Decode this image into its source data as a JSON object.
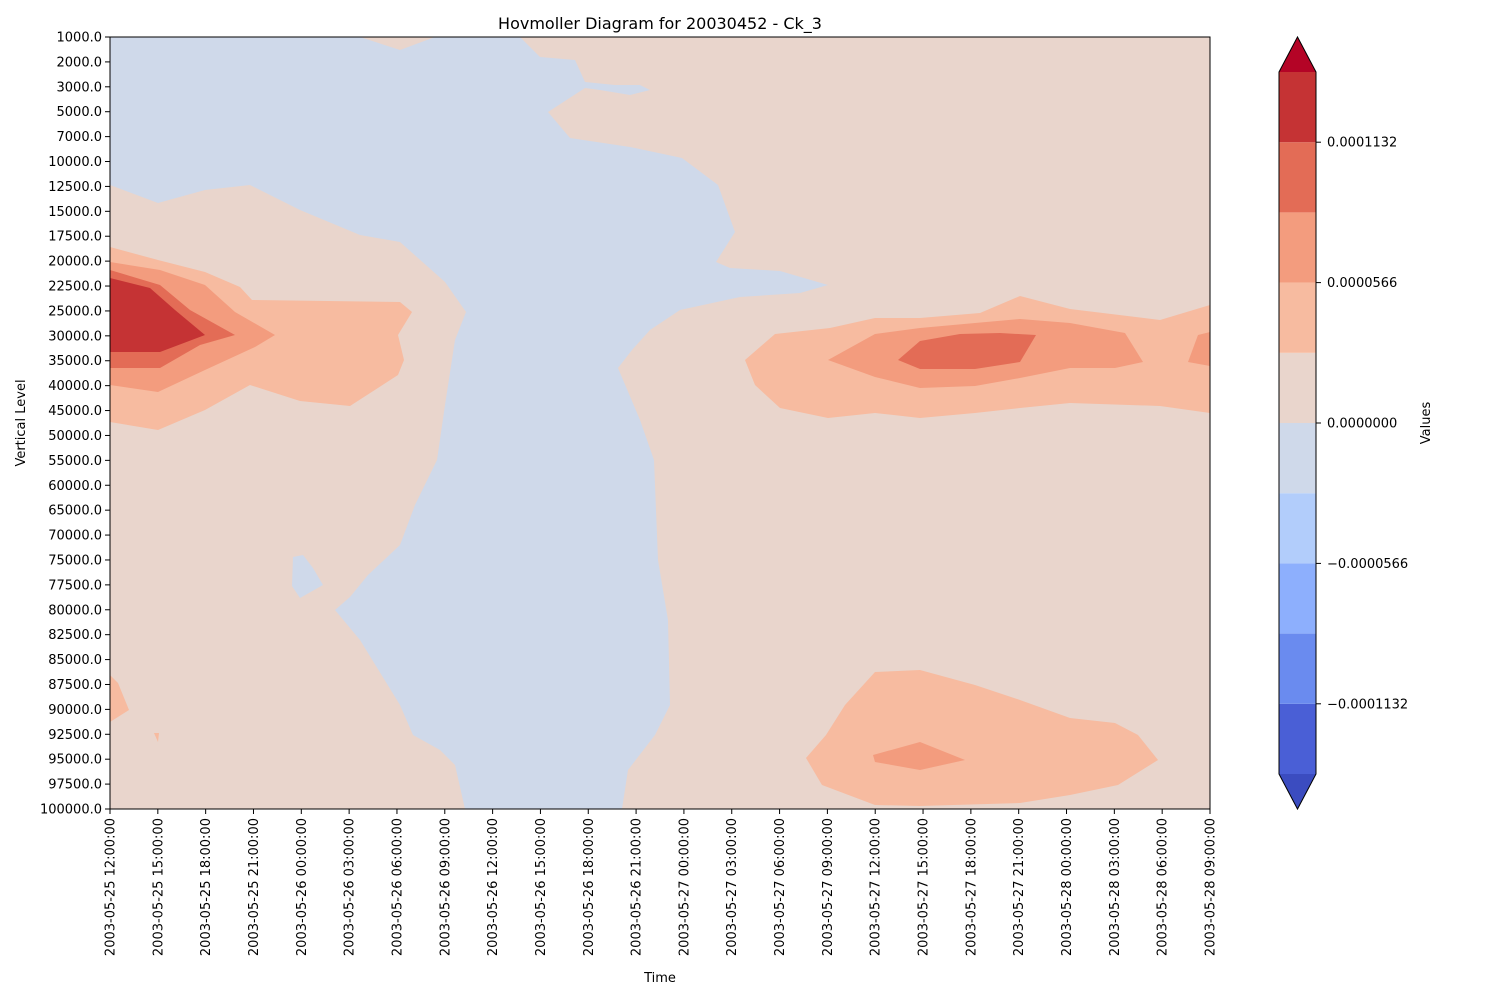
{
  "chart_data": {
    "type": "heatmap",
    "title": "Hovmoller Diagram for 20030452 - Ck_3",
    "xlabel": "Time",
    "ylabel": "Vertical Level",
    "y_inverted": true,
    "x_ticks": [
      "2003-05-25 12:00:00",
      "2003-05-25 15:00:00",
      "2003-05-25 18:00:00",
      "2003-05-25 21:00:00",
      "2003-05-26 00:00:00",
      "2003-05-26 03:00:00",
      "2003-05-26 06:00:00",
      "2003-05-26 09:00:00",
      "2003-05-26 12:00:00",
      "2003-05-26 15:00:00",
      "2003-05-26 18:00:00",
      "2003-05-26 21:00:00",
      "2003-05-27 00:00:00",
      "2003-05-27 03:00:00",
      "2003-05-27 06:00:00",
      "2003-05-27 09:00:00",
      "2003-05-27 12:00:00",
      "2003-05-27 15:00:00",
      "2003-05-27 18:00:00",
      "2003-05-27 21:00:00",
      "2003-05-28 00:00:00",
      "2003-05-28 03:00:00",
      "2003-05-28 06:00:00",
      "2003-05-28 09:00:00"
    ],
    "y_levels": [
      "1000.0",
      "2000.0",
      "3000.0",
      "5000.0",
      "7000.0",
      "10000.0",
      "12500.0",
      "15000.0",
      "17500.0",
      "20000.0",
      "22500.0",
      "25000.0",
      "30000.0",
      "35000.0",
      "40000.0",
      "45000.0",
      "50000.0",
      "55000.0",
      "60000.0",
      "65000.0",
      "70000.0",
      "75000.0",
      "77500.0",
      "80000.0",
      "82500.0",
      "85000.0",
      "87500.0",
      "90000.0",
      "92500.0",
      "95000.0",
      "97500.0",
      "100000.0"
    ],
    "colorbar": {
      "label": "Values",
      "ticks": [
        {
          "label": "0.0001132",
          "value": 0.0001132
        },
        {
          "label": "0.0000566",
          "value": 5.66e-05
        },
        {
          "label": "0.0000000",
          "value": 0.0
        },
        {
          "label": "−0.0000566",
          "value": -5.66e-05
        },
        {
          "label": "−0.0001132",
          "value": -0.0001132
        }
      ],
      "levels": [
        -0.0001415,
        -0.0001132,
        -8.49e-05,
        -5.66e-05,
        -2.83e-05,
        0.0,
        2.83e-05,
        5.66e-05,
        8.49e-05,
        0.0001132,
        0.0001415
      ],
      "colors": [
        "#3b4cc0",
        "#4a5fd6",
        "#6a8bef",
        "#8daffd",
        "#b2cdfb",
        "#cfd9ea",
        "#e9d5cc",
        "#f7bba0",
        "#f39c7e",
        "#e36c56",
        "#c53334",
        "#b40426"
      ],
      "extend": "both"
    },
    "fill_levels": {
      "negative_small": "#cfd9ea",
      "positive_small": "#e9d5cc",
      "positive_1": "#f7bba0",
      "positive_2": "#f39c7e",
      "positive_3": "#e36c56",
      "positive_4": "#c53334"
    }
  }
}
